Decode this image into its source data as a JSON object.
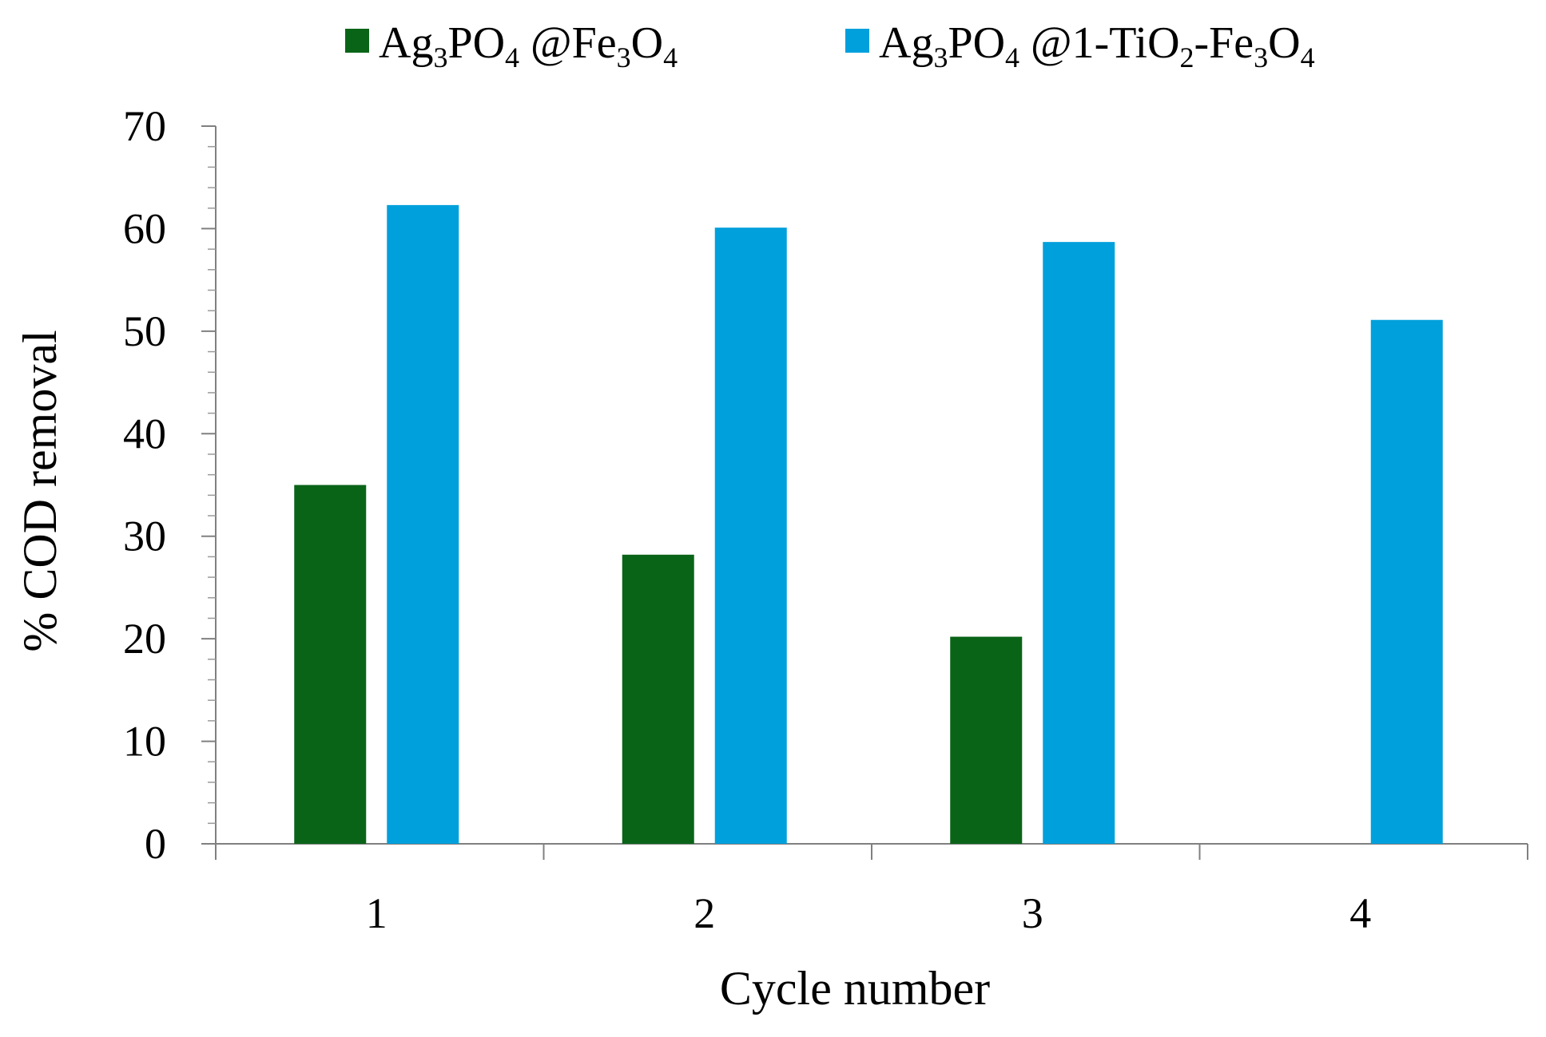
{
  "chart_data": {
    "type": "bar",
    "categories": [
      "1",
      "2",
      "3",
      "4"
    ],
    "series": [
      {
        "name": "Ag3PO4@Fe3O4",
        "legend_label": [
          {
            "t": "Ag"
          },
          {
            "t": "3",
            "sub": true
          },
          {
            "t": "PO"
          },
          {
            "t": "4",
            "sub": true
          },
          {
            "t": " @Fe"
          },
          {
            "t": "3",
            "sub": true
          },
          {
            "t": "O"
          },
          {
            "t": "4",
            "sub": true
          }
        ],
        "color": "#0a6418",
        "values": [
          35,
          28.2,
          20.2,
          null
        ]
      },
      {
        "name": "Ag3PO4@1-TiO2-Fe3O4",
        "legend_label": [
          {
            "t": "Ag"
          },
          {
            "t": "3",
            "sub": true
          },
          {
            "t": "PO"
          },
          {
            "t": "4",
            "sub": true
          },
          {
            "t": " @1-TiO"
          },
          {
            "t": "2",
            "sub": true
          },
          {
            "t": "-Fe"
          },
          {
            "t": "3",
            "sub": true
          },
          {
            "t": "O"
          },
          {
            "t": "4",
            "sub": true
          }
        ],
        "color": "#00a0dc",
        "values": [
          62.3,
          60.1,
          58.7,
          51.1
        ]
      }
    ],
    "xlabel": "Cycle number",
    "ylabel": "% COD removal",
    "ylim": [
      0,
      70
    ],
    "yticks": [
      0,
      10,
      20,
      30,
      40,
      50,
      60,
      70
    ],
    "minor_step": 2,
    "grid": false,
    "legend_position": "top"
  }
}
